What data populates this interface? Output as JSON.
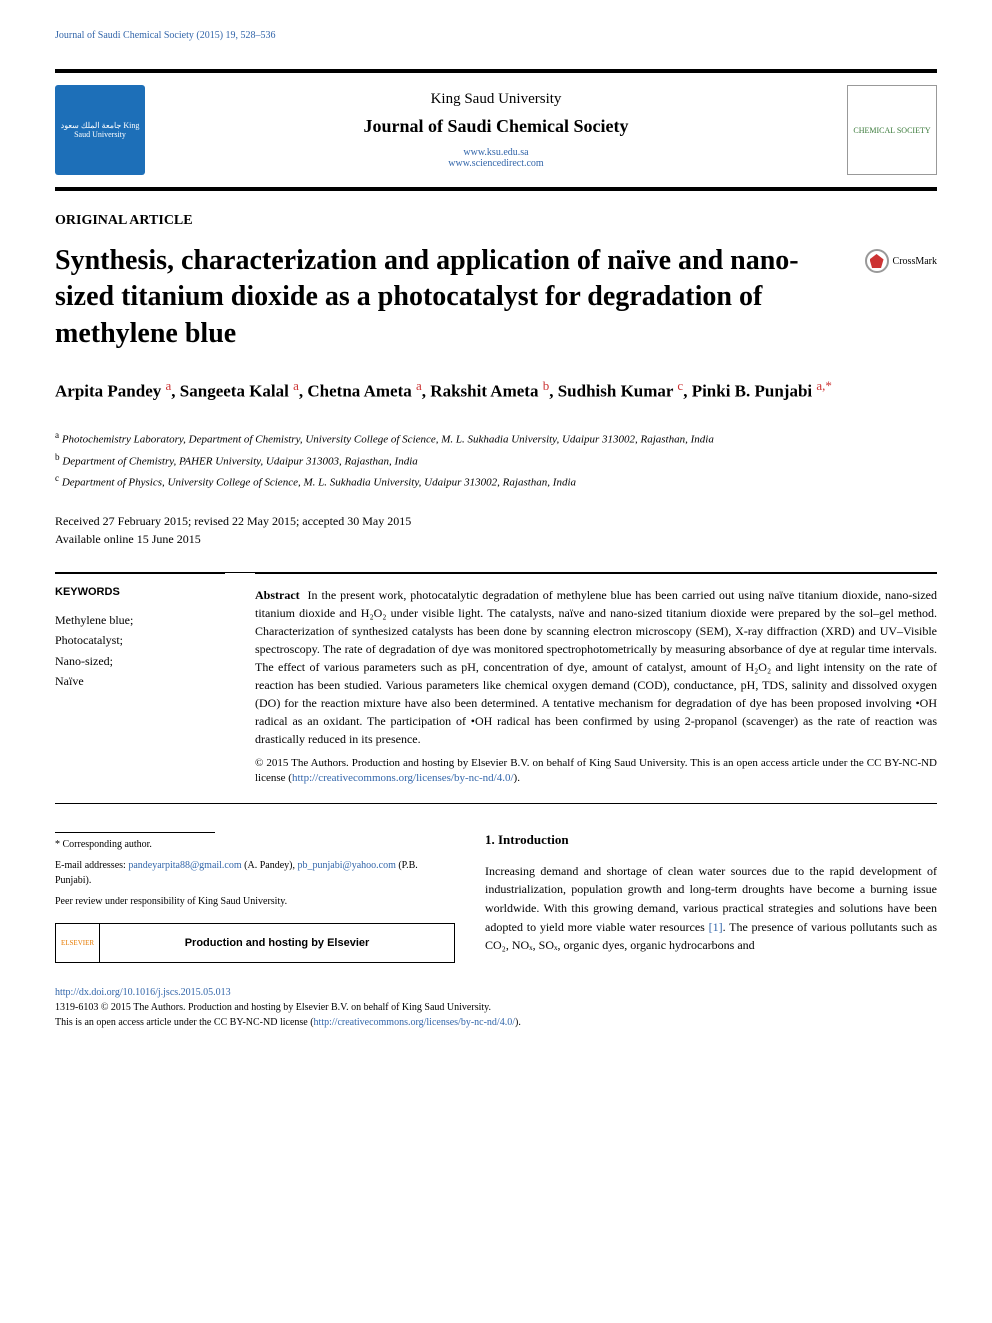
{
  "running_header": "Journal of Saudi Chemical Society (2015) 19, 528–536",
  "masthead": {
    "left_logo_text": "جامعة الملك سعود\nKing Saud University",
    "university": "King Saud University",
    "journal": "Journal of Saudi Chemical Society",
    "link1": "www.ksu.edu.sa",
    "link2": "www.sciencedirect.com",
    "right_logo_text": "CHEMICAL SOCIETY"
  },
  "article_type": "ORIGINAL ARTICLE",
  "title": "Synthesis, characterization and application of naïve and nano-sized titanium dioxide as a photocatalyst for degradation of methylene blue",
  "crossmark_label": "CrossMark",
  "authors_html": "Arpita Pandey <sup>a</sup>, Sangeeta Kalal <sup>a</sup>, Chetna Ameta <sup>a</sup>, Rakshit Ameta <sup>b</sup>, Sudhish Kumar <sup>c</sup>, Pinki B. Punjabi <sup>a,*</sup>",
  "affiliations": [
    {
      "sup": "a",
      "text": "Photochemistry Laboratory, Department of Chemistry, University College of Science, M. L. Sukhadia University, Udaipur 313002, Rajasthan, India"
    },
    {
      "sup": "b",
      "text": "Department of Chemistry, PAHER University, Udaipur 313003, Rajasthan, India"
    },
    {
      "sup": "c",
      "text": "Department of Physics, University College of Science, M. L. Sukhadia University, Udaipur 313002, Rajasthan, India"
    }
  ],
  "dates_line1": "Received 27 February 2015; revised 22 May 2015; accepted 30 May 2015",
  "dates_line2": "Available online 15 June 2015",
  "keywords_heading": "KEYWORDS",
  "keywords": [
    "Methylene blue;",
    "Photocatalyst;",
    "Nano-sized;",
    "Naïve"
  ],
  "abstract_label": "Abstract",
  "abstract_text": "In the present work, photocatalytic degradation of methylene blue has been carried out using naïve titanium dioxide, nano-sized titanium dioxide and H₂O₂ under visible light. The catalysts, naïve and nano-sized titanium dioxide were prepared by the sol–gel method. Characterization of synthesized catalysts has been done by scanning electron microscopy (SEM), X-ray diffraction (XRD) and UV–Visible spectroscopy. The rate of degradation of dye was monitored spectrophotometrically by measuring absorbance of dye at regular time intervals. The effect of various parameters such as pH, concentration of dye, amount of catalyst, amount of H₂O₂ and light intensity on the rate of reaction has been studied. Various parameters like chemical oxygen demand (COD), conductance, pH, TDS, salinity and dissolved oxygen (DO) for the reaction mixture have also been determined. A tentative mechanism for degradation of dye has been proposed involving •OH radical as an oxidant. The participation of •OH radical has been confirmed by using 2-propanol (scavenger) as the rate of reaction was drastically reduced in its presence.",
  "copyright_text": "© 2015 The Authors. Production and hosting by Elsevier B.V. on behalf of King Saud University. This is an open access article under the CC BY-NC-ND license (",
  "copyright_link": "http://creativecommons.org/licenses/by-nc-nd/4.0/",
  "copyright_close": ").",
  "intro_heading": "1. Introduction",
  "intro_text_pre": "Increasing demand and shortage of clean water sources due to the rapid development of industrialization, population growth and long-term droughts have become a burning issue worldwide. With this growing demand, various practical strategies and solutions have been adopted to yield more viable water resources ",
  "intro_ref": "[1]",
  "intro_text_post": ". The presence of various pollutants such as CO₂, NOₓ, SOₓ, organic dyes, organic hydrocarbons and",
  "footnote_corresponding": "* Corresponding author.",
  "footnote_email_label": "E-mail addresses: ",
  "footnote_email1": "pandeyarpita88@gmail.com",
  "footnote_email1_name": " (A. Pandey), ",
  "footnote_email2": "pb_punjabi@yahoo.com",
  "footnote_email2_name": " (P.B. Punjabi).",
  "footnote_peer": "Peer review under responsibility of King Saud University.",
  "hosting_logo": "ELSEVIER",
  "hosting_text": "Production and hosting by Elsevier",
  "footer": {
    "doi": "http://dx.doi.org/10.1016/j.jscs.2015.05.013",
    "issn_line": "1319-6103 © 2015 The Authors. Production and hosting by Elsevier B.V. on behalf of King Saud University.",
    "license_line_pre": "This is an open access article under the CC BY-NC-ND license (",
    "license_link": "http://creativecommons.org/licenses/by-nc-nd/4.0/",
    "license_line_post": ")."
  },
  "colors": {
    "link": "#3366aa",
    "sup": "#cc3333",
    "logo_bg": "#1d6fb8",
    "elsevier": "#e67a00"
  }
}
